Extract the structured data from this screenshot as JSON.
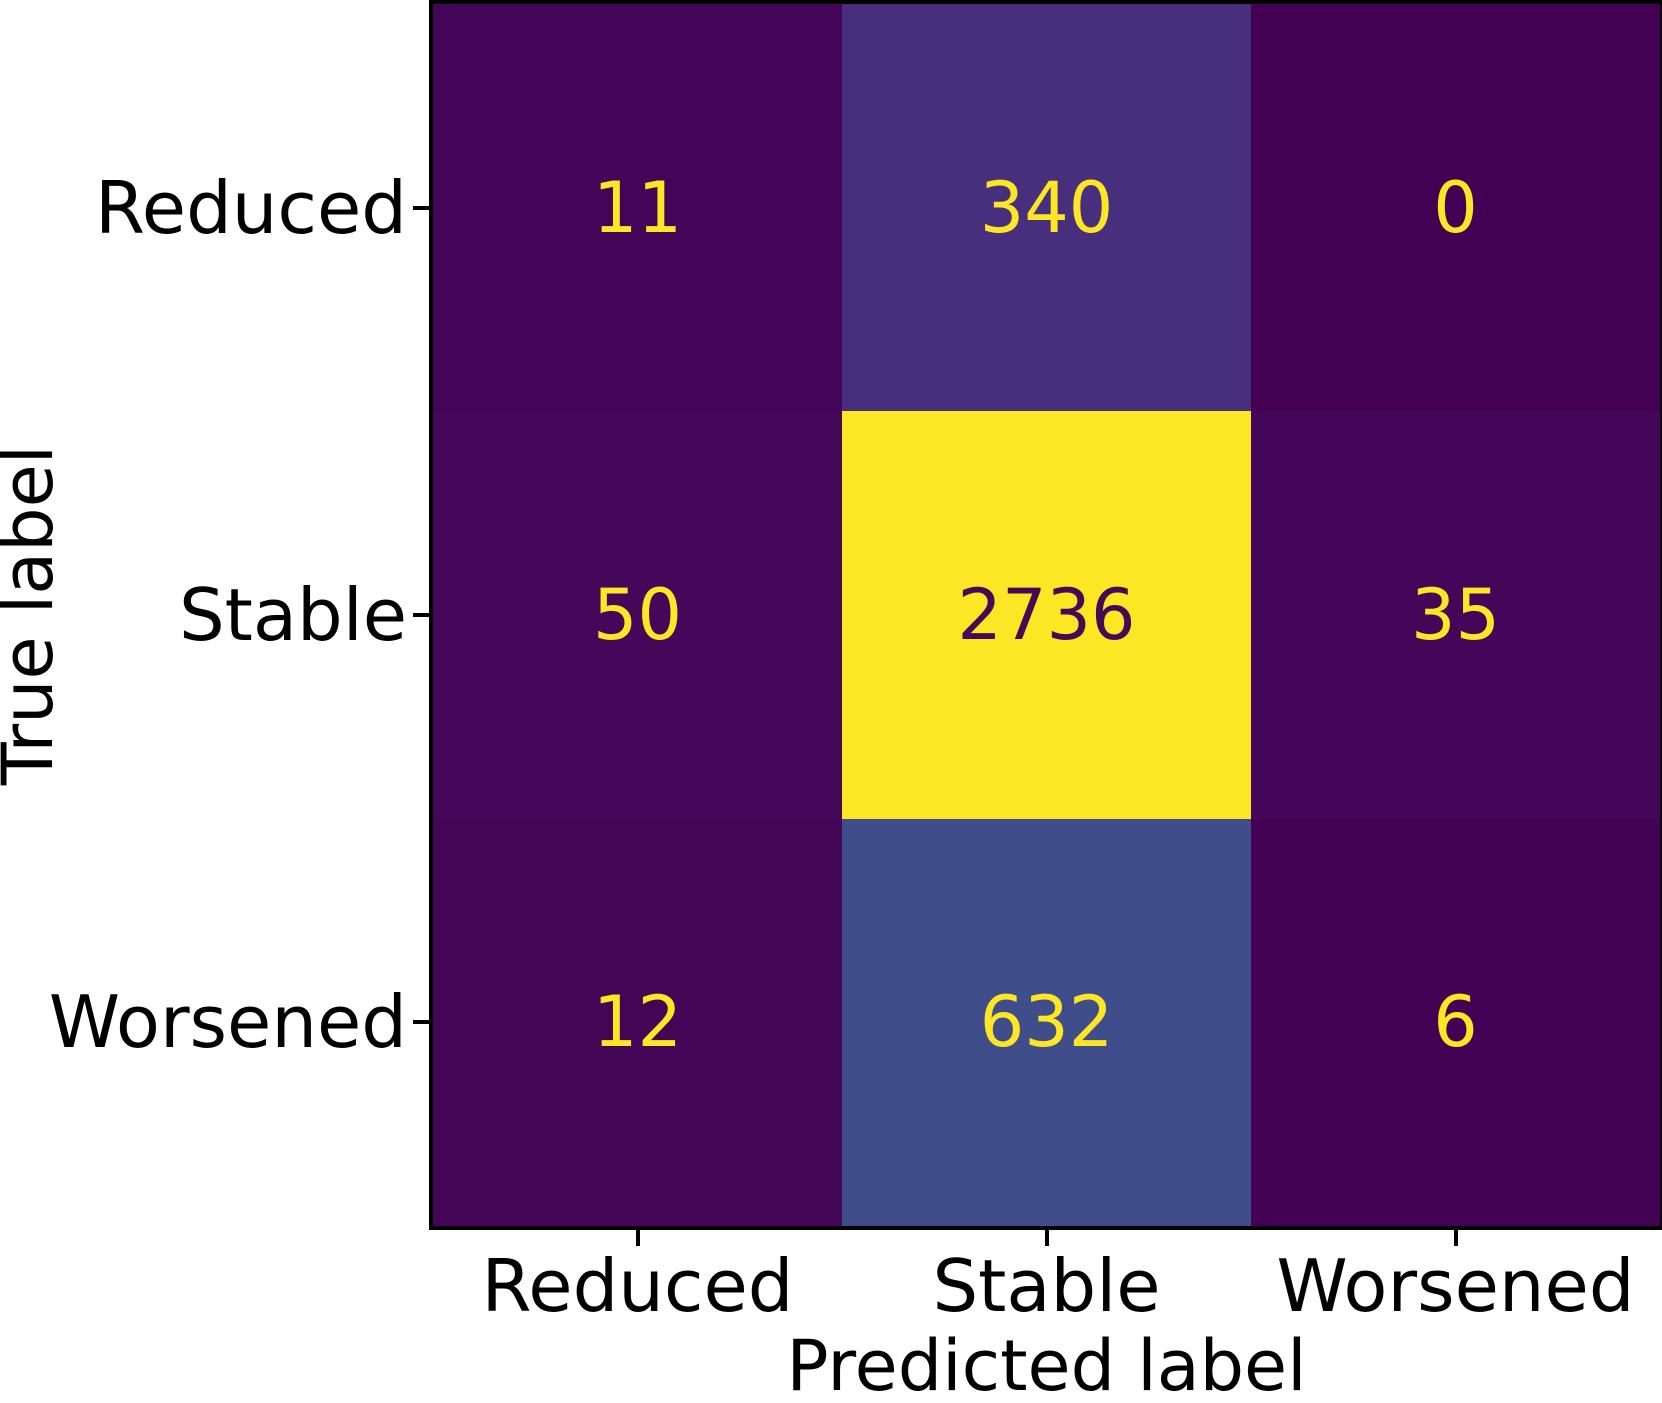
{
  "chart_data": {
    "type": "heatmap",
    "subtype": "confusion-matrix",
    "title": "",
    "xlabel": "Predicted label",
    "ylabel": "True label",
    "x_categories": [
      "Reduced",
      "Stable",
      "Worsened"
    ],
    "y_categories": [
      "Reduced",
      "Stable",
      "Worsened"
    ],
    "matrix": [
      [
        11,
        340,
        0
      ],
      [
        50,
        2736,
        35
      ],
      [
        12,
        632,
        6
      ]
    ],
    "vmin": 0,
    "vmax": 2736,
    "colormap": "viridis",
    "cell_colors": [
      [
        "#430557",
        "#472f7d",
        "#440154"
      ],
      [
        "#450759",
        "#fde725",
        "#440659"
      ],
      [
        "#430556",
        "#3f4e8a",
        "#440255"
      ]
    ],
    "cell_text_colors": [
      [
        "#fde725",
        "#fde725",
        "#fde725"
      ],
      [
        "#fde725",
        "#440a58",
        "#fde725"
      ],
      [
        "#fde725",
        "#fde725",
        "#fde725"
      ]
    ],
    "axis_color": "#000000",
    "grid": false,
    "legend": "none"
  }
}
